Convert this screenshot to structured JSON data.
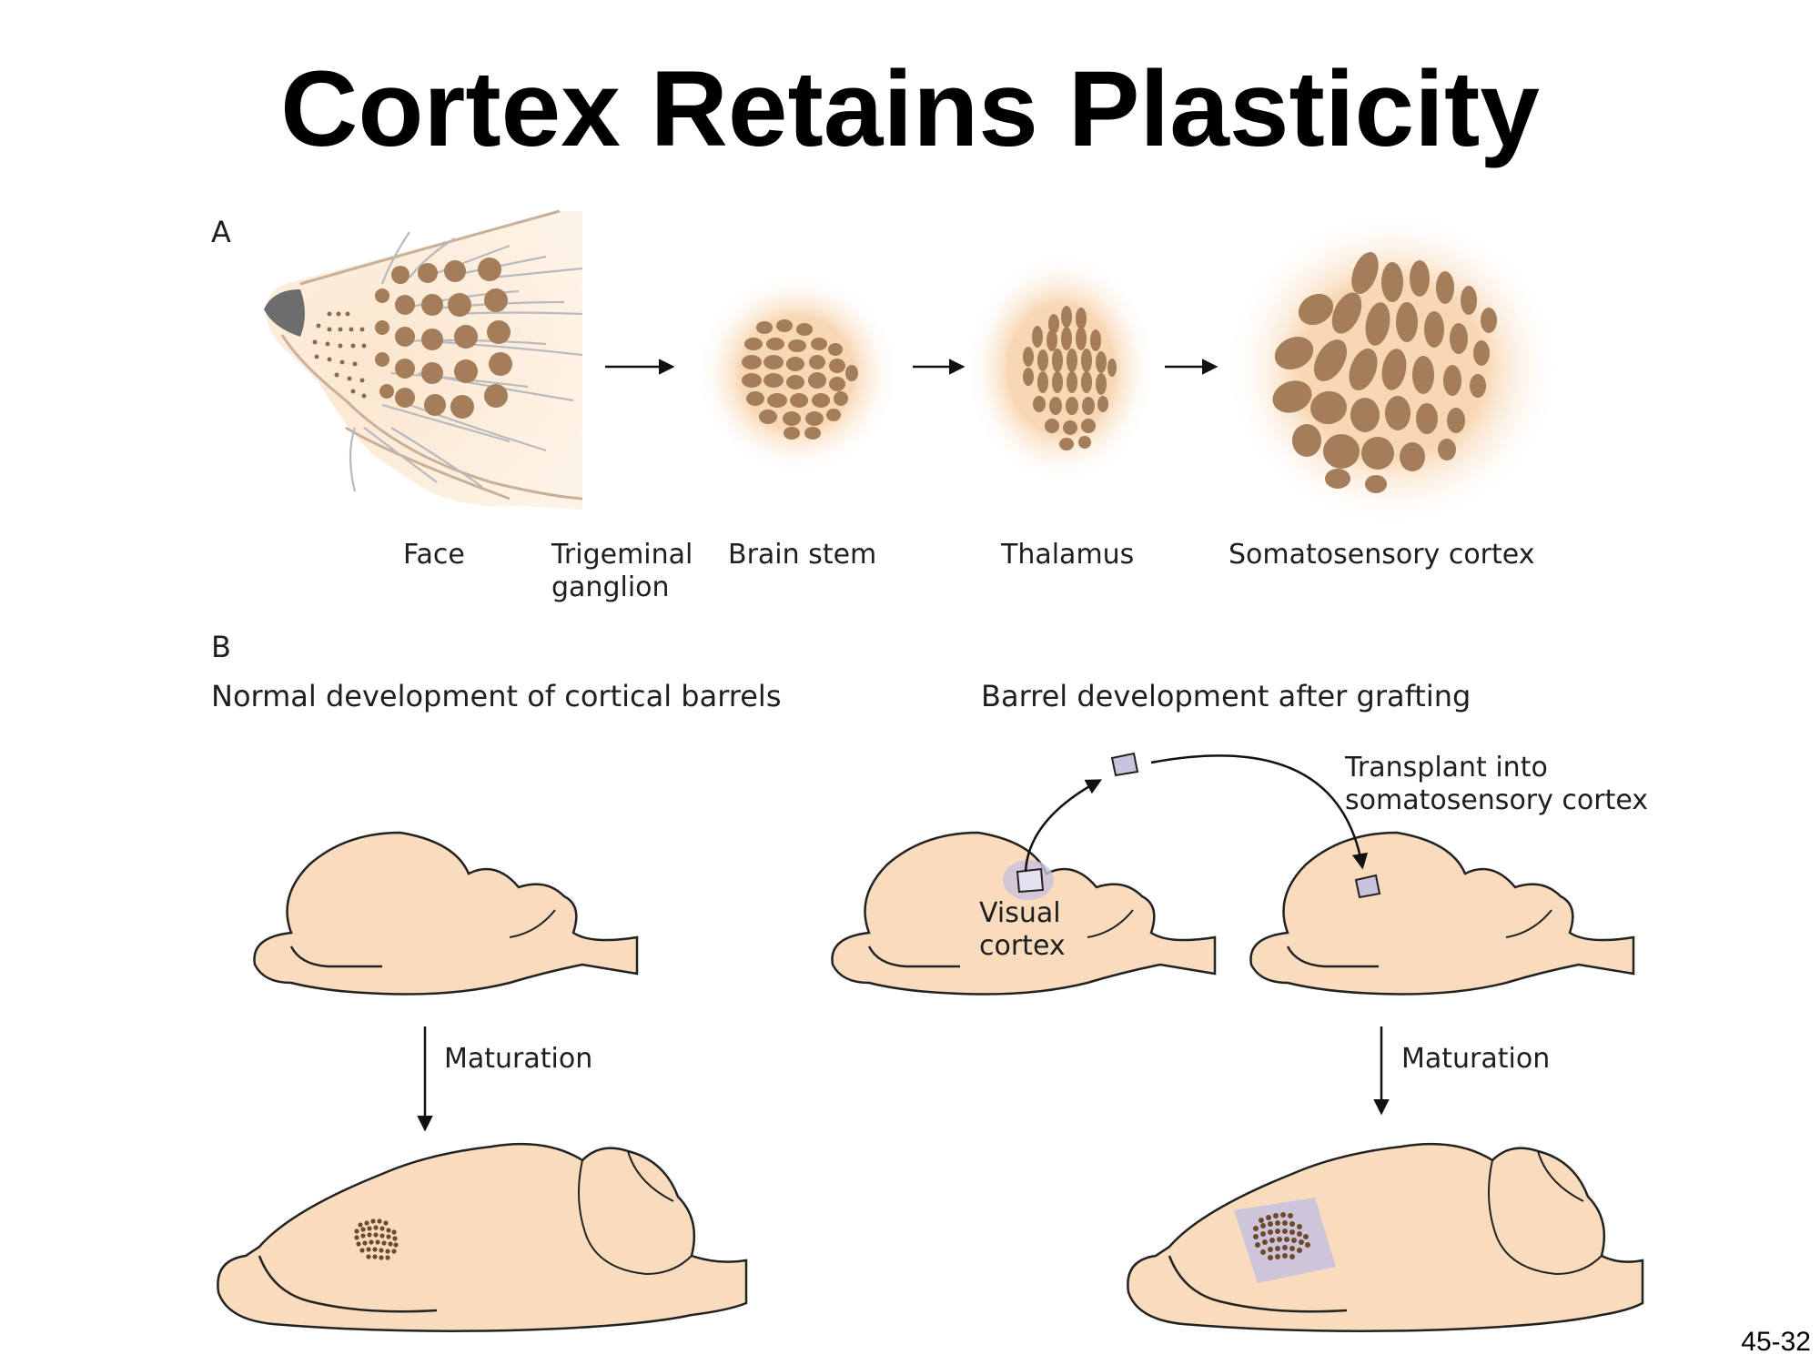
{
  "slide": {
    "title": "Cortex Retains Plasticity",
    "number": "45-32"
  },
  "panel_a": {
    "letter": "A",
    "labels": {
      "face": "Face",
      "trigeminal_1": "Trigeminal",
      "trigeminal_2": "ganglion",
      "brain_stem": "Brain stem",
      "thalamus": "Thalamus",
      "cortex": "Somatosensory cortex"
    }
  },
  "panel_b": {
    "letter": "B",
    "left_heading": "Normal development of cortical barrels",
    "right_heading": "Barrel development after grafting",
    "transplant_1": "Transplant into",
    "transplant_2": "somatosensory cortex",
    "visual_1": "Visual",
    "visual_2": "cortex",
    "maturation_left": "Maturation",
    "maturation_right": "Maturation"
  },
  "colors": {
    "tissue": "#f9dcbd",
    "tissue_glow": "#fbe3c8",
    "barrel": "#a47d5a",
    "barrel_dark": "#6e4a2b",
    "graft": "#c9c2dd",
    "nose": "#6d6d6d"
  }
}
